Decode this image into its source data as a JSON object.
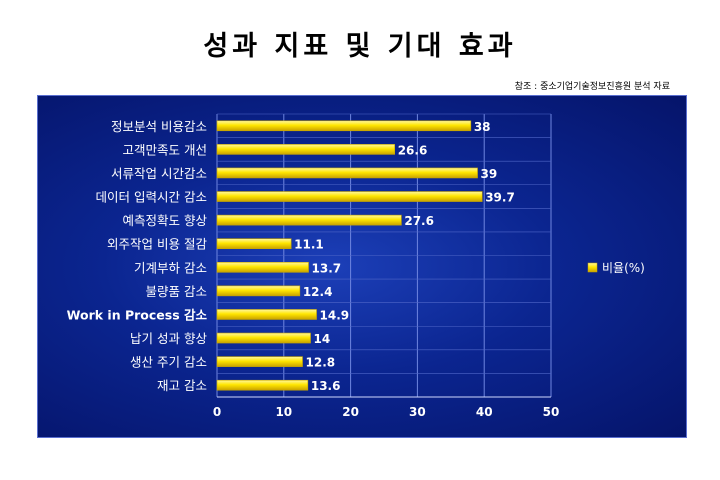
{
  "title": "성과 지표 및 기대 효과",
  "source_note": "참조 : 중소기업기술정보진흥원 분석 자료",
  "colors": {
    "bar": "#ffe600",
    "bar_edge": "#c9a800",
    "background": "#0b2590",
    "label": "#ffffff"
  },
  "chart_data": {
    "type": "bar",
    "orientation": "horizontal",
    "categories": [
      "정보분석 비용감소",
      "고객만족도 개선",
      "서류작업 시간감소",
      "데이터 입력시간 감소",
      "예측정확도 향상",
      "외주작업 비용 절감",
      "기계부하 감소",
      "불량품 감소",
      "Work in Process 감소",
      "납기 성과 향상",
      "생산 주기 감소",
      "재고 감소"
    ],
    "series": [
      {
        "name": "비율(%)",
        "values": [
          38,
          26.6,
          39,
          39.7,
          27.6,
          11.1,
          13.7,
          12.4,
          14.9,
          14,
          12.8,
          13.6
        ]
      }
    ],
    "data_labels": [
      "38",
      "26.6",
      "39",
      "39.7",
      "27.6",
      "11.1",
      "13.7",
      "12.4",
      "14.9",
      "14",
      "12.8",
      "13.6"
    ],
    "xlim": [
      0,
      50
    ],
    "x_ticks": [
      "0",
      "10",
      "20",
      "30",
      "40",
      "50"
    ],
    "grid": true,
    "legend_position": "right"
  }
}
